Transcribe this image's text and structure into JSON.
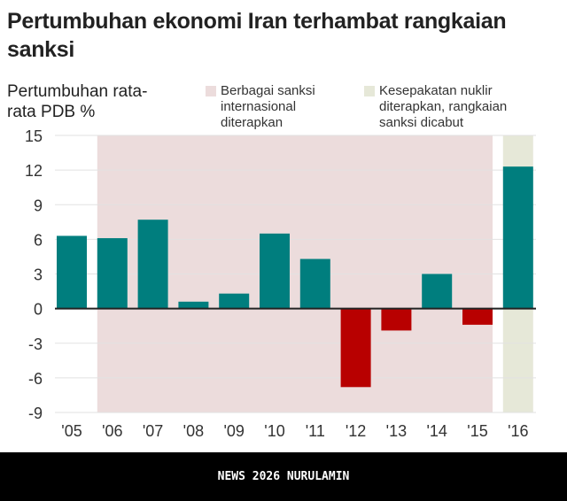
{
  "title": "Pertumbuhan ekonomi Iran terhambat rangkaian sanksi",
  "chart_data": {
    "type": "bar",
    "ylabel": "Pertumbuhan rata-rata PDB %",
    "categories": [
      "'05",
      "'06",
      "'07",
      "'08",
      "'09",
      "'10",
      "'11",
      "'12",
      "'13",
      "'14",
      "'15",
      "'16"
    ],
    "values": [
      6.3,
      6.1,
      7.7,
      0.6,
      1.3,
      6.5,
      4.3,
      -6.8,
      -1.9,
      3.0,
      -1.4,
      12.3
    ],
    "ylim": [
      -9,
      15
    ],
    "yticks": [
      15,
      12,
      9,
      6,
      3,
      0,
      -3,
      -6,
      -9
    ],
    "grid": true,
    "colors": {
      "positive": "#007e7e",
      "negative": "#b80000",
      "sanctions_band": "#ecdcdc",
      "deal_band": "#e6e8d8"
    },
    "annotations": [
      {
        "label": "Berbagai sanksi internasional diterapkan",
        "from": "'06",
        "to": "'15",
        "color": "#ecdcdc"
      },
      {
        "label": "Kesepakatan nuklir diterapkan, rangkaian sanksi dicabut",
        "from": "'16",
        "to": "'16",
        "color": "#e6e8d8"
      }
    ]
  },
  "footer": "NEWS 2026 NURULAMIN"
}
